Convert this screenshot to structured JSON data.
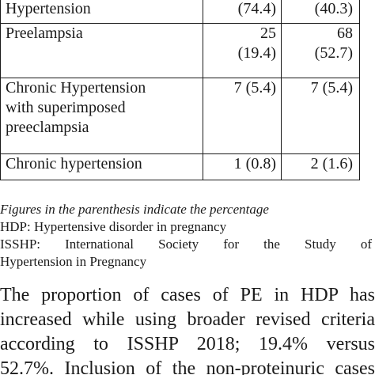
{
  "table": {
    "rows": [
      {
        "label": [
          "Hypertension"
        ],
        "v1": [
          "(74.4)"
        ],
        "v2": [
          "(40.3)"
        ]
      },
      {
        "label": [
          "Preelampsia"
        ],
        "v1": [
          "25",
          "(19.4)"
        ],
        "v2": [
          "68",
          "(52.7)"
        ]
      },
      {
        "label": [
          "Chronic Hypertension",
          "with superimposed",
          "preeclampsia"
        ],
        "v1": [
          "7 (5.4)"
        ],
        "v2": [
          "7 (5.4)"
        ]
      },
      {
        "label": [
          "Chronic hypertension"
        ],
        "v1": [
          "1 (0.8)"
        ],
        "v2": [
          "2 (1.6)"
        ]
      }
    ]
  },
  "notes": {
    "italic": "Figures in the parenthesis indicate the percentage",
    "hdp": "HDP: Hypertensive disorder in pregnancy",
    "isshp_line1": "ISSHP: International Society for   the   Study   of",
    "isshp_line2": "Hypertension in Pregnancy"
  },
  "body": {
    "lines": [
      "The proportion of cases of PE in HDP has",
      "increased while using broader revised criteria",
      "according to ISSHP 2018; 19.4% versus",
      "52.7%. Inclusion of the non-proteinuric cases"
    ]
  }
}
